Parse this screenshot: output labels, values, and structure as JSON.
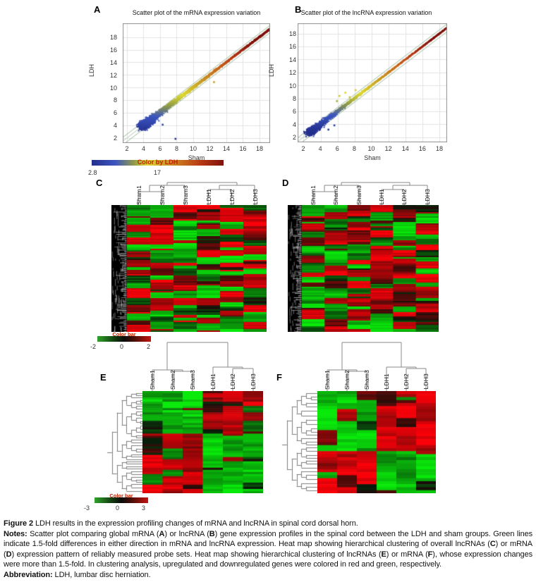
{
  "figure": {
    "panels": {
      "a": {
        "label": "A",
        "title": "Scatter plot of the mRNA expression variation",
        "xlabel": "Sham",
        "ylabel": "LDH",
        "x_ticks": [
          "2",
          "4",
          "6",
          "8",
          "10",
          "12",
          "14",
          "16",
          "18"
        ],
        "y_ticks": [
          "18",
          "16",
          "14",
          "12",
          "10",
          "8",
          "6",
          "4",
          "2"
        ],
        "colorbar": {
          "label": "Color by LDH",
          "min": "2.8",
          "max": "17"
        }
      },
      "b": {
        "label": "B",
        "title": "Scatter plot of the lncRNA expression variation",
        "xlabel": "Sham",
        "ylabel": "LDH",
        "x_ticks": [
          "2",
          "4",
          "6",
          "8",
          "10",
          "12",
          "14",
          "16",
          "18"
        ],
        "y_ticks": [
          "18",
          "16",
          "14",
          "12",
          "10",
          "8",
          "6",
          "4",
          "2"
        ]
      },
      "c": {
        "label": "C"
      },
      "d": {
        "label": "D"
      },
      "e": {
        "label": "E"
      },
      "f": {
        "label": "F"
      }
    },
    "heatmap_columns": [
      "Sham1",
      "Sham2",
      "Sham3",
      "LDH1",
      "LDH2",
      "LDH3"
    ],
    "colorbar_cd": {
      "label": "Color bar",
      "ticks": [
        "-2",
        "0",
        "2"
      ]
    },
    "colorbar_ef": {
      "label": "Color bar",
      "ticks": [
        "-3",
        "0",
        "3"
      ]
    },
    "caption": {
      "fig_label": "Figure 2",
      "fig_text": " LDH results in the expression profiling changes of mRNA and lncRNA in spinal cord dorsal horn.",
      "notes_runs": [
        {
          "b": 1,
          "t": "Notes: "
        },
        {
          "t": "Scatter plot comparing global mRNA ("
        },
        {
          "b": 1,
          "t": "A"
        },
        {
          "t": ") or lncRNA ("
        },
        {
          "b": 1,
          "t": "B"
        },
        {
          "t": ") gene expression profiles in the spinal cord between the LDH and sham groups. Green lines indicate 1.5-fold differences in either direction in mRNA and lncRNA expression. Heat map showing hierarchical clustering of overall lncRNAs ("
        },
        {
          "b": 1,
          "t": "C"
        },
        {
          "t": ") or mRNA ("
        },
        {
          "b": 1,
          "t": "D"
        },
        {
          "t": ") expression pattern of reliably measured probe sets. Heat map showing hierarchical clustering of lncRNAs ("
        },
        {
          "b": 1,
          "t": "E"
        },
        {
          "t": ") or mRNA ("
        },
        {
          "b": 1,
          "t": "F"
        },
        {
          "t": "), whose expression changes were more than 1.5-fold. In clustering analysis, upregulated and downregulated genes were colored in red and green, respectively."
        }
      ],
      "abbrev_label": "Abbreviation:",
      "abbrev_text": " LDH, lumbar disc herniation."
    }
  },
  "chart_data": [
    {
      "id": "A",
      "type": "scatter",
      "title": "Scatter plot of the mRNA expression variation",
      "xlabel": "Sham",
      "ylabel": "LDH",
      "xlim": [
        1.5,
        19.3
      ],
      "ylim": [
        1.2,
        20.2
      ],
      "ticks": [
        2,
        4,
        6,
        8,
        10,
        12,
        14,
        16,
        18
      ],
      "grid": true,
      "diagonal": "y = x",
      "fold_change_lines": 1.5,
      "fold_log2_offset": 0.585,
      "color_by": "LDH",
      "color_range": [
        2.8,
        17
      ],
      "color_stops": [
        [
          0,
          "#232f8c"
        ],
        [
          0.18,
          "#3c55c0"
        ],
        [
          0.3,
          "#8f9a48"
        ],
        [
          0.42,
          "#ded832"
        ],
        [
          0.56,
          "#c8a22a"
        ],
        [
          0.7,
          "#c86f1e"
        ],
        [
          0.84,
          "#b93a14"
        ],
        [
          1,
          "#7f120c"
        ]
      ],
      "n_points": 3000,
      "spread": 1.0,
      "low_cluster_center": 4.6,
      "seed": 7,
      "outliers": [
        [
          7.85,
          1.9
        ],
        [
          6.3,
          4.15
        ],
        [
          12.5,
          10.9
        ]
      ]
    },
    {
      "id": "B",
      "type": "scatter",
      "title": "Scatter plot of the lncRNA expression variation",
      "xlabel": "Sham",
      "ylabel": "LDH",
      "xlim": [
        1.3,
        18.9
      ],
      "ylim": [
        1.2,
        19.6
      ],
      "ticks": [
        2,
        4,
        6,
        8,
        10,
        12,
        14,
        16,
        18
      ],
      "grid": true,
      "diagonal": "y = x",
      "fold_change_lines": 1.5,
      "fold_log2_offset": 0.585,
      "color_by": "LDH",
      "color_range": [
        2.8,
        17
      ],
      "color_stops": [
        [
          0,
          "#232f8c"
        ],
        [
          0.18,
          "#3c55c0"
        ],
        [
          0.3,
          "#8f9a48"
        ],
        [
          0.42,
          "#ded832"
        ],
        [
          0.56,
          "#c8a22a"
        ],
        [
          0.7,
          "#c86f1e"
        ],
        [
          0.84,
          "#b93a14"
        ],
        [
          1,
          "#7f120c"
        ]
      ],
      "n_points": 2400,
      "spread": 0.6,
      "low_cluster_center": 3.4,
      "seed": 11,
      "outliers": [
        [
          6.2,
          8.4
        ],
        [
          6.9,
          8.9
        ],
        [
          7.4,
          8.2
        ],
        [
          8.1,
          9.3
        ],
        [
          5.9,
          7.6
        ],
        [
          4.9,
          3.2
        ],
        [
          5.6,
          3.85
        ]
      ]
    },
    {
      "id": "C",
      "type": "heatmap",
      "content": "hierarchical clustering of overall lncRNAs",
      "columns": [
        "Sham1",
        "Sham2",
        "Sham3",
        "LDH1",
        "LDH2",
        "LDH3"
      ],
      "rows": 90,
      "value_range": [
        -2,
        2
      ],
      "pattern": "mixed",
      "strip_w": 22,
      "seed": 21,
      "up_color": "#e01010",
      "down_color": "#16a816",
      "zero_color": "#0c0c0c",
      "row_dendrogram": "dense-left",
      "col_dendrogram": true
    },
    {
      "id": "D",
      "type": "heatmap",
      "content": "hierarchical clustering of overall mRNA",
      "columns": [
        "Sham1",
        "Sham2",
        "Sham3",
        "LDH1",
        "LDH2",
        "LDH3"
      ],
      "rows": 90,
      "value_range": [
        -2,
        2
      ],
      "pattern": "mixed",
      "strip_w": 20,
      "seed": 29,
      "up_color": "#e01010",
      "down_color": "#16a816",
      "zero_color": "#0c0c0c",
      "row_dendrogram": "dense-left",
      "col_dendrogram": true
    },
    {
      "id": "E",
      "type": "heatmap",
      "content": "lncRNAs changed more than 1.5-fold",
      "columns": [
        "Sham1",
        "Sham2",
        "Sham3",
        "LDH1",
        "LDH2",
        "LDH3"
      ],
      "rows": 48,
      "value_range": [
        -3,
        3
      ],
      "pattern": "split",
      "split": 0.42,
      "strip_w": 0,
      "seed": 35,
      "up_color": "#e01010",
      "down_color": "#16a816",
      "zero_color": "#0c0c0c",
      "block_summary": "top block: Sham down (green) / LDH up (red); bottom block: Sham up (red) / LDH down (green)",
      "row_dendrogram": "binary-left",
      "col_dendrogram": true
    },
    {
      "id": "F",
      "type": "heatmap",
      "content": "mRNAs changed more than 1.5-fold",
      "columns": [
        "Sham1",
        "Sham2",
        "Sham3",
        "LDH1",
        "LDH2",
        "LDH3"
      ],
      "rows": 34,
      "value_range": [
        -3,
        3
      ],
      "pattern": "split",
      "split": 0.6,
      "strip_w": 0,
      "seed": 41,
      "up_color": "#e01010",
      "down_color": "#16a816",
      "zero_color": "#0c0c0c",
      "block_summary": "top block: Sham down (green) / LDH up (red); bottom block: Sham up (red) / LDH down (green)",
      "row_dendrogram": "binary-left",
      "col_dendrogram": true
    }
  ]
}
